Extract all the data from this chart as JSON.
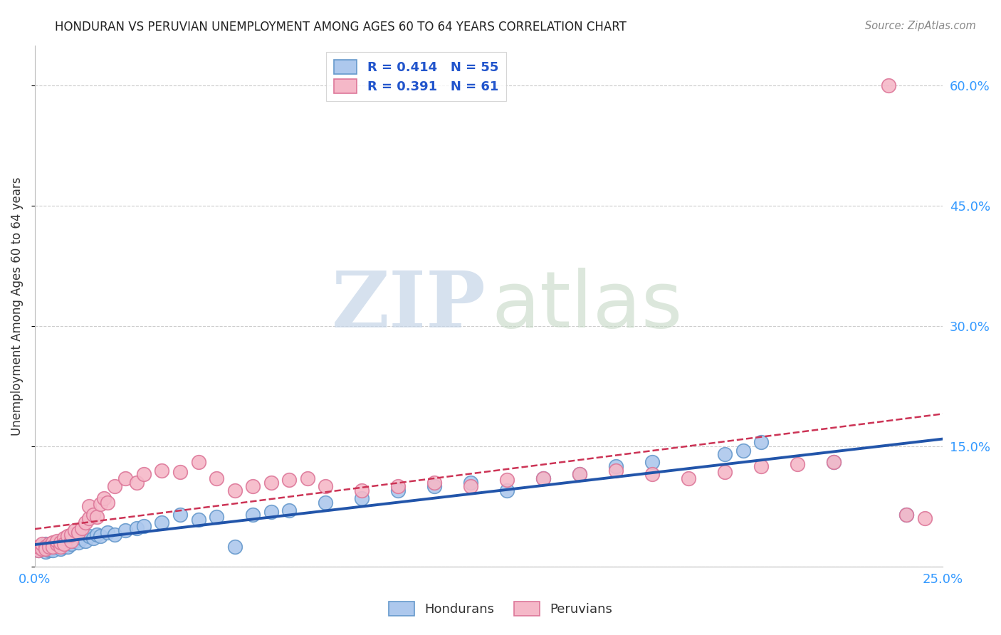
{
  "title": "HONDURAN VS PERUVIAN UNEMPLOYMENT AMONG AGES 60 TO 64 YEARS CORRELATION CHART",
  "source": "Source: ZipAtlas.com",
  "ylabel": "Unemployment Among Ages 60 to 64 years",
  "xlim": [
    0.0,
    0.25
  ],
  "ylim": [
    0.0,
    0.65
  ],
  "x_ticks": [
    0.0,
    0.05,
    0.1,
    0.15,
    0.2,
    0.25
  ],
  "x_tick_labels": [
    "0.0%",
    "",
    "",
    "",
    "",
    "25.0%"
  ],
  "y_ticks": [
    0.0,
    0.15,
    0.3,
    0.45,
    0.6
  ],
  "y_tick_labels_right": [
    "",
    "15.0%",
    "30.0%",
    "45.0%",
    "60.0%"
  ],
  "honduran_R": 0.414,
  "honduran_N": 55,
  "peruvian_R": 0.391,
  "peruvian_N": 61,
  "honduran_color": "#adc8ed",
  "honduran_edge_color": "#6699cc",
  "peruvian_color": "#f5b8c8",
  "peruvian_edge_color": "#dd7799",
  "trend_honduran_color": "#2255aa",
  "trend_peruvian_color": "#cc3355",
  "background_color": "#ffffff",
  "grid_color": "#cccccc",
  "honduran_x": [
    0.001,
    0.002,
    0.002,
    0.003,
    0.003,
    0.004,
    0.004,
    0.005,
    0.005,
    0.006,
    0.006,
    0.007,
    0.007,
    0.008,
    0.008,
    0.009,
    0.009,
    0.01,
    0.01,
    0.011,
    0.012,
    0.013,
    0.014,
    0.015,
    0.016,
    0.017,
    0.018,
    0.02,
    0.022,
    0.025,
    0.028,
    0.03,
    0.035,
    0.04,
    0.045,
    0.05,
    0.055,
    0.06,
    0.065,
    0.07,
    0.08,
    0.09,
    0.1,
    0.11,
    0.12,
    0.13,
    0.14,
    0.15,
    0.16,
    0.17,
    0.19,
    0.195,
    0.2,
    0.22,
    0.24
  ],
  "honduran_y": [
    0.02,
    0.022,
    0.025,
    0.018,
    0.028,
    0.02,
    0.022,
    0.025,
    0.02,
    0.03,
    0.025,
    0.028,
    0.022,
    0.03,
    0.025,
    0.028,
    0.025,
    0.03,
    0.028,
    0.032,
    0.03,
    0.035,
    0.032,
    0.038,
    0.035,
    0.04,
    0.038,
    0.042,
    0.04,
    0.045,
    0.048,
    0.05,
    0.055,
    0.065,
    0.058,
    0.062,
    0.025,
    0.065,
    0.068,
    0.07,
    0.08,
    0.085,
    0.095,
    0.1,
    0.105,
    0.095,
    0.11,
    0.115,
    0.125,
    0.13,
    0.14,
    0.145,
    0.155,
    0.13,
    0.065
  ],
  "peruvian_x": [
    0.001,
    0.001,
    0.002,
    0.002,
    0.003,
    0.003,
    0.004,
    0.004,
    0.005,
    0.005,
    0.006,
    0.006,
    0.007,
    0.007,
    0.008,
    0.008,
    0.009,
    0.01,
    0.01,
    0.011,
    0.012,
    0.013,
    0.014,
    0.015,
    0.015,
    0.016,
    0.017,
    0.018,
    0.019,
    0.02,
    0.022,
    0.025,
    0.028,
    0.03,
    0.035,
    0.04,
    0.045,
    0.05,
    0.055,
    0.06,
    0.065,
    0.07,
    0.075,
    0.08,
    0.09,
    0.1,
    0.11,
    0.12,
    0.13,
    0.14,
    0.15,
    0.16,
    0.17,
    0.18,
    0.19,
    0.2,
    0.21,
    0.22,
    0.235,
    0.24,
    0.245
  ],
  "peruvian_y": [
    0.02,
    0.025,
    0.022,
    0.028,
    0.025,
    0.022,
    0.028,
    0.025,
    0.03,
    0.025,
    0.028,
    0.032,
    0.025,
    0.03,
    0.035,
    0.028,
    0.038,
    0.032,
    0.04,
    0.045,
    0.042,
    0.048,
    0.055,
    0.06,
    0.075,
    0.065,
    0.062,
    0.078,
    0.085,
    0.08,
    0.1,
    0.11,
    0.105,
    0.115,
    0.12,
    0.118,
    0.13,
    0.11,
    0.095,
    0.1,
    0.105,
    0.108,
    0.11,
    0.1,
    0.095,
    0.1,
    0.105,
    0.1,
    0.108,
    0.11,
    0.115,
    0.12,
    0.115,
    0.11,
    0.118,
    0.125,
    0.128,
    0.13,
    0.6,
    0.065,
    0.06
  ]
}
